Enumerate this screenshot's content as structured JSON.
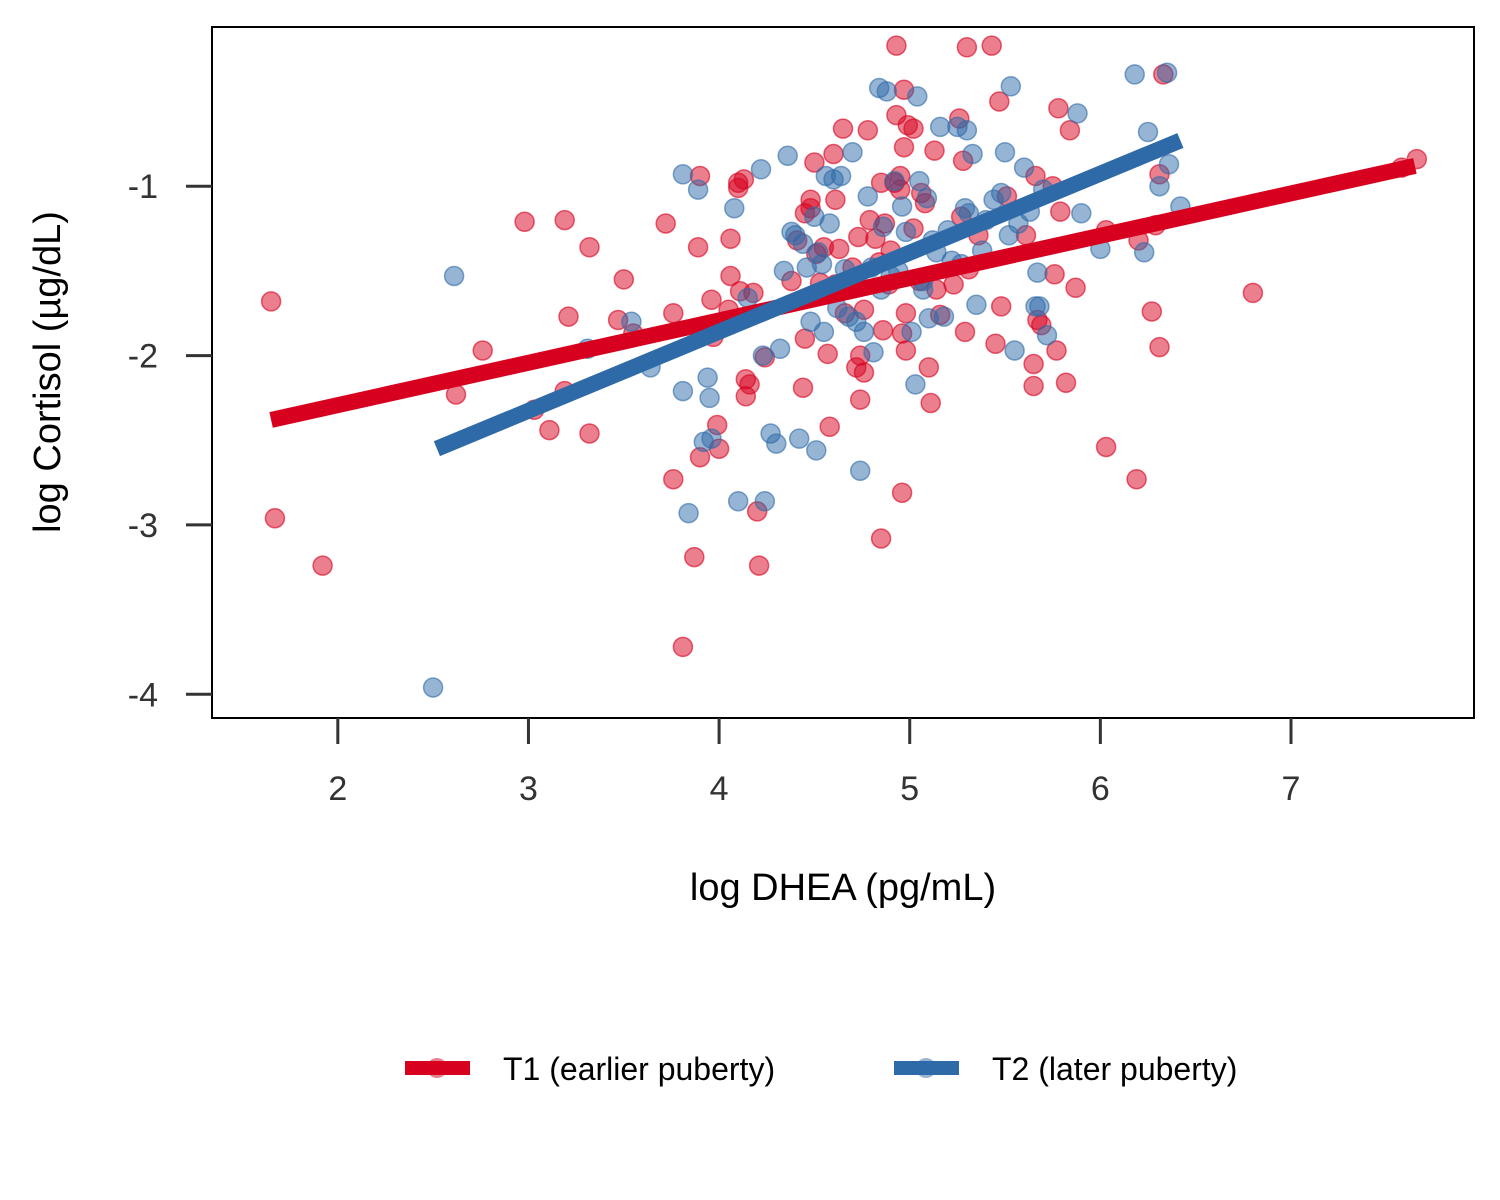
{
  "chart_data": {
    "type": "scatter",
    "title": "",
    "xlabel": "log DHEA (pg/mL)",
    "ylabel": "log Cortisol (µg/dL)",
    "xlim": [
      1.34,
      7.96
    ],
    "ylim": [
      -4.14,
      -0.06
    ],
    "x_ticks": [
      2,
      3,
      4,
      5,
      6,
      7
    ],
    "y_ticks": [
      -4,
      -3,
      -2,
      -1
    ],
    "grid": false,
    "legend_position": "bottom",
    "series": [
      {
        "name": "T1 (earlier puberty)",
        "color": "#d7001e",
        "point_opacity": 0.5,
        "fit_line": [
          [
            1.65,
            -2.38
          ],
          [
            7.65,
            -0.88
          ]
        ],
        "points": [
          [
            1.65,
            -1.68
          ],
          [
            1.67,
            -2.96
          ],
          [
            1.92,
            -3.24
          ],
          [
            2.62,
            -2.23
          ],
          [
            2.76,
            -1.97
          ],
          [
            2.98,
            -1.21
          ],
          [
            3.03,
            -2.32
          ],
          [
            3.11,
            -2.44
          ],
          [
            3.19,
            -1.2
          ],
          [
            3.19,
            -2.21
          ],
          [
            3.21,
            -1.77
          ],
          [
            3.32,
            -1.36
          ],
          [
            3.32,
            -2.46
          ],
          [
            3.5,
            -1.55
          ],
          [
            3.47,
            -1.79
          ],
          [
            3.55,
            -1.87
          ],
          [
            3.72,
            -1.22
          ],
          [
            3.76,
            -1.75
          ],
          [
            3.76,
            -2.73
          ],
          [
            3.81,
            -3.72
          ],
          [
            3.87,
            -3.19
          ],
          [
            3.89,
            -1.36
          ],
          [
            3.9,
            -2.6
          ],
          [
            3.9,
            -0.94
          ],
          [
            3.96,
            -1.67
          ],
          [
            3.97,
            -1.89
          ],
          [
            3.99,
            -2.41
          ],
          [
            4.0,
            -2.55
          ],
          [
            4.05,
            -1.73
          ],
          [
            4.06,
            -1.31
          ],
          [
            4.06,
            -1.53
          ],
          [
            4.1,
            -1.01
          ],
          [
            4.1,
            -0.98
          ],
          [
            4.11,
            -1.62
          ],
          [
            4.13,
            -0.96
          ],
          [
            4.14,
            -2.14
          ],
          [
            4.14,
            -2.24
          ],
          [
            4.16,
            -2.17
          ],
          [
            4.18,
            -1.63
          ],
          [
            4.2,
            -2.92
          ],
          [
            4.21,
            -3.24
          ],
          [
            4.24,
            -2.01
          ],
          [
            4.38,
            -1.56
          ],
          [
            4.41,
            -1.32
          ],
          [
            4.44,
            -2.19
          ],
          [
            4.45,
            -1.16
          ],
          [
            4.45,
            -1.9
          ],
          [
            4.48,
            -1.13
          ],
          [
            4.48,
            -1.08
          ],
          [
            4.5,
            -0.86
          ],
          [
            4.51,
            -1.4
          ],
          [
            4.53,
            -1.57
          ],
          [
            4.55,
            -1.36
          ],
          [
            4.57,
            -1.99
          ],
          [
            4.58,
            -2.42
          ],
          [
            4.6,
            -0.81
          ],
          [
            4.61,
            -1.08
          ],
          [
            4.61,
            -1.58
          ],
          [
            4.63,
            -1.37
          ],
          [
            4.65,
            -0.66
          ],
          [
            4.66,
            -1.75
          ],
          [
            4.68,
            -1.56
          ],
          [
            4.7,
            -1.48
          ],
          [
            4.72,
            -2.07
          ],
          [
            4.73,
            -1.3
          ],
          [
            4.74,
            -2.26
          ],
          [
            4.74,
            -2.0
          ],
          [
            4.76,
            -1.73
          ],
          [
            4.76,
            -2.1
          ],
          [
            4.78,
            -0.67
          ],
          [
            4.79,
            -1.2
          ],
          [
            4.82,
            -1.31
          ],
          [
            4.84,
            -1.45
          ],
          [
            4.85,
            -0.98
          ],
          [
            4.85,
            -3.08
          ],
          [
            4.86,
            -1.85
          ],
          [
            4.87,
            -1.22
          ],
          [
            4.89,
            -1.58
          ],
          [
            4.9,
            -1.38
          ],
          [
            4.92,
            -0.98
          ],
          [
            4.93,
            -0.58
          ],
          [
            4.93,
            -0.17
          ],
          [
            4.95,
            -0.94
          ],
          [
            4.95,
            -1.02
          ],
          [
            4.96,
            -1.87
          ],
          [
            4.96,
            -2.81
          ],
          [
            4.97,
            -0.77
          ],
          [
            4.97,
            -0.43
          ],
          [
            4.98,
            -1.75
          ],
          [
            4.98,
            -1.97
          ],
          [
            4.99,
            -0.64
          ],
          [
            5.02,
            -0.66
          ],
          [
            5.02,
            -1.25
          ],
          [
            5.05,
            -1.56
          ],
          [
            5.06,
            -1.04
          ],
          [
            5.08,
            -1.1
          ],
          [
            5.1,
            -2.07
          ],
          [
            5.11,
            -2.28
          ],
          [
            5.13,
            -0.79
          ],
          [
            5.14,
            -1.61
          ],
          [
            5.16,
            -1.76
          ],
          [
            5.23,
            -1.58
          ],
          [
            5.26,
            -0.6
          ],
          [
            5.27,
            -1.18
          ],
          [
            5.28,
            -0.85
          ],
          [
            5.29,
            -1.86
          ],
          [
            5.3,
            -0.18
          ],
          [
            5.31,
            -1.49
          ],
          [
            5.36,
            -1.29
          ],
          [
            5.43,
            -0.17
          ],
          [
            5.45,
            -1.93
          ],
          [
            5.47,
            -0.5
          ],
          [
            5.48,
            -1.71
          ],
          [
            5.51,
            -1.06
          ],
          [
            5.61,
            -1.29
          ],
          [
            5.65,
            -2.05
          ],
          [
            5.65,
            -2.18
          ],
          [
            5.66,
            -0.94
          ],
          [
            5.67,
            -1.79
          ],
          [
            5.69,
            -1.82
          ],
          [
            5.75,
            -1.0
          ],
          [
            5.76,
            -1.52
          ],
          [
            5.77,
            -1.97
          ],
          [
            5.78,
            -0.54
          ],
          [
            5.79,
            -1.15
          ],
          [
            5.82,
            -2.16
          ],
          [
            5.84,
            -0.67
          ],
          [
            5.87,
            -1.6
          ],
          [
            6.03,
            -1.26
          ],
          [
            6.03,
            -2.54
          ],
          [
            6.19,
            -2.73
          ],
          [
            6.2,
            -1.32
          ],
          [
            6.27,
            -1.74
          ],
          [
            6.29,
            -1.23
          ],
          [
            6.31,
            -0.93
          ],
          [
            6.31,
            -1.95
          ],
          [
            6.33,
            -0.34
          ],
          [
            6.8,
            -1.63
          ],
          [
            7.58,
            -0.89
          ],
          [
            7.66,
            -0.84
          ]
        ]
      },
      {
        "name": "T2 (later puberty)",
        "color": "#2e6aa8",
        "point_opacity": 0.5,
        "fit_line": [
          [
            2.52,
            -2.55
          ],
          [
            6.42,
            -0.73
          ]
        ],
        "points": [
          [
            2.5,
            -3.96
          ],
          [
            2.61,
            -1.53
          ],
          [
            3.31,
            -1.96
          ],
          [
            3.54,
            -1.8
          ],
          [
            3.64,
            -2.07
          ],
          [
            3.81,
            -0.93
          ],
          [
            3.81,
            -2.21
          ],
          [
            3.84,
            -2.93
          ],
          [
            3.89,
            -1.02
          ],
          [
            3.92,
            -2.51
          ],
          [
            3.94,
            -2.13
          ],
          [
            3.95,
            -2.25
          ],
          [
            3.96,
            -2.49
          ],
          [
            4.08,
            -1.13
          ],
          [
            4.1,
            -2.86
          ],
          [
            4.15,
            -1.66
          ],
          [
            4.22,
            -0.9
          ],
          [
            4.23,
            -2.0
          ],
          [
            4.24,
            -2.86
          ],
          [
            4.27,
            -2.46
          ],
          [
            4.3,
            -2.52
          ],
          [
            4.32,
            -1.96
          ],
          [
            4.34,
            -1.5
          ],
          [
            4.36,
            -0.82
          ],
          [
            4.38,
            -1.27
          ],
          [
            4.4,
            -1.29
          ],
          [
            4.42,
            -2.49
          ],
          [
            4.44,
            -1.34
          ],
          [
            4.46,
            -1.48
          ],
          [
            4.48,
            -1.8
          ],
          [
            4.5,
            -1.18
          ],
          [
            4.51,
            -2.56
          ],
          [
            4.52,
            -1.39
          ],
          [
            4.54,
            -1.46
          ],
          [
            4.55,
            -1.86
          ],
          [
            4.56,
            -0.94
          ],
          [
            4.58,
            -1.22
          ],
          [
            4.59,
            -1.6
          ],
          [
            4.6,
            -0.96
          ],
          [
            4.62,
            -1.72
          ],
          [
            4.64,
            -0.94
          ],
          [
            4.66,
            -1.49
          ],
          [
            4.68,
            -1.77
          ],
          [
            4.7,
            -0.8
          ],
          [
            4.72,
            -1.8
          ],
          [
            4.74,
            -2.68
          ],
          [
            4.76,
            -1.86
          ],
          [
            4.78,
            -1.06
          ],
          [
            4.8,
            -1.48
          ],
          [
            4.81,
            -1.98
          ],
          [
            4.84,
            -0.42
          ],
          [
            4.85,
            -1.61
          ],
          [
            4.86,
            -1.24
          ],
          [
            4.88,
            -0.44
          ],
          [
            4.9,
            -1.53
          ],
          [
            4.92,
            -0.97
          ],
          [
            4.94,
            -1.5
          ],
          [
            4.96,
            -1.12
          ],
          [
            4.98,
            -1.27
          ],
          [
            5.01,
            -1.86
          ],
          [
            5.03,
            -2.17
          ],
          [
            5.04,
            -0.47
          ],
          [
            5.05,
            -0.97
          ],
          [
            5.07,
            -1.61
          ],
          [
            5.07,
            -1.56
          ],
          [
            5.09,
            -1.07
          ],
          [
            5.1,
            -1.78
          ],
          [
            5.12,
            -1.32
          ],
          [
            5.14,
            -1.39
          ],
          [
            5.16,
            -0.65
          ],
          [
            5.18,
            -1.77
          ],
          [
            5.2,
            -1.26
          ],
          [
            5.22,
            -1.44
          ],
          [
            5.25,
            -0.65
          ],
          [
            5.27,
            -1.46
          ],
          [
            5.29,
            -1.13
          ],
          [
            5.3,
            -0.67
          ],
          [
            5.31,
            -1.16
          ],
          [
            5.33,
            -0.81
          ],
          [
            5.35,
            -1.7
          ],
          [
            5.38,
            -1.38
          ],
          [
            5.4,
            -1.2
          ],
          [
            5.44,
            -1.08
          ],
          [
            5.48,
            -1.04
          ],
          [
            5.5,
            -0.8
          ],
          [
            5.52,
            -1.29
          ],
          [
            5.53,
            -0.41
          ],
          [
            5.55,
            -1.97
          ],
          [
            5.57,
            -1.22
          ],
          [
            5.6,
            -0.89
          ],
          [
            5.63,
            -1.15
          ],
          [
            5.66,
            -1.71
          ],
          [
            5.67,
            -1.51
          ],
          [
            5.68,
            -1.71
          ],
          [
            5.7,
            -1.02
          ],
          [
            5.72,
            -1.88
          ],
          [
            5.88,
            -0.57
          ],
          [
            5.9,
            -1.16
          ],
          [
            6.0,
            -1.37
          ],
          [
            6.18,
            -0.34
          ],
          [
            6.23,
            -1.39
          ],
          [
            6.25,
            -0.68
          ],
          [
            6.31,
            -1.0
          ],
          [
            6.35,
            -0.33
          ],
          [
            6.36,
            -0.87
          ],
          [
            6.42,
            -1.12
          ]
        ]
      }
    ]
  },
  "legend": {
    "items": [
      {
        "label": "T1 (earlier puberty)",
        "color": "#d7001e"
      },
      {
        "label": "T2 (later puberty)",
        "color": "#2e6aa8"
      }
    ]
  }
}
